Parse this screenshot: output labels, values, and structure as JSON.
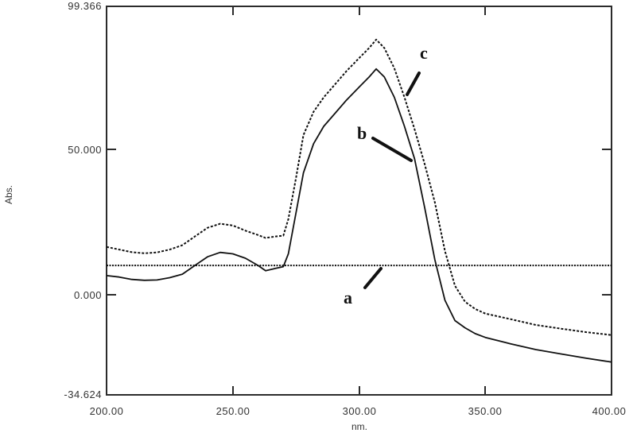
{
  "chart_data": {
    "type": "line",
    "title": "",
    "xlabel": "nm.",
    "ylabel": "Abs.",
    "xlim": [
      200.0,
      400.0
    ],
    "ylim": [
      -34.624,
      99.366
    ],
    "x_ticks": [
      "200.00",
      "250.00",
      "300.00",
      "350.00",
      "400.00"
    ],
    "y_ticks": [
      "99.366",
      "50.000",
      "0.000",
      "-34.624"
    ],
    "grid": false,
    "legend": "none (curves annotated with labels a, b, c)",
    "series": [
      {
        "name": "a",
        "style": "dotted",
        "x": [
          200,
          400
        ],
        "values": [
          10.0,
          10.0
        ]
      },
      {
        "name": "b",
        "style": "solid",
        "x": [
          200,
          205,
          210,
          215,
          220,
          225,
          230,
          235,
          240,
          245,
          250,
          255,
          260,
          263,
          267,
          270,
          272,
          275,
          278,
          282,
          286,
          290,
          295,
          300,
          304,
          306.8,
          310,
          314,
          318,
          322,
          326,
          330,
          334,
          338,
          342,
          346,
          350,
          360,
          370,
          380,
          390,
          400
        ],
        "values": [
          6.5,
          6.0,
          5.2,
          4.9,
          5.0,
          5.8,
          7.0,
          10.0,
          13.0,
          14.5,
          14.0,
          12.5,
          10.0,
          8.2,
          9.0,
          9.6,
          14.0,
          28.0,
          42.0,
          52.0,
          58.0,
          62.0,
          67.0,
          71.5,
          75.0,
          77.8,
          75.0,
          68.0,
          58.0,
          46.8,
          30.0,
          12.0,
          -2.0,
          -9.0,
          -11.5,
          -13.5,
          -14.8,
          -17.0,
          -19.0,
          -20.5,
          -22.0,
          -23.3
        ]
      },
      {
        "name": "c",
        "style": "dotted",
        "x": [
          200,
          205,
          210,
          215,
          220,
          225,
          230,
          235,
          240,
          245,
          250,
          255,
          260,
          263,
          267,
          270,
          272,
          275,
          278,
          282,
          286,
          290,
          295,
          300,
          304,
          306.8,
          310,
          314,
          318,
          322,
          326,
          330,
          334,
          338,
          342,
          346,
          350,
          360,
          370,
          380,
          390,
          400
        ],
        "values": [
          16.4,
          15.5,
          14.6,
          14.2,
          14.5,
          15.5,
          17.0,
          20.0,
          23.0,
          24.4,
          23.8,
          22.0,
          20.5,
          19.5,
          20.0,
          20.3,
          26.0,
          40.0,
          55.0,
          63.0,
          68.0,
          72.0,
          77.0,
          81.5,
          85.0,
          87.9,
          85.0,
          78.0,
          68.0,
          57.0,
          45.0,
          31.8,
          15.0,
          3.0,
          -2.5,
          -5.0,
          -6.6,
          -8.5,
          -10.5,
          -11.8,
          -13.0,
          -14.0
        ]
      }
    ],
    "annotations": [
      {
        "label": "a",
        "x_nm": 285,
        "y_abs": 0
      },
      {
        "label": "b",
        "x_nm": 302,
        "y_abs": 55
      },
      {
        "label": "c",
        "x_nm": 325,
        "y_abs": 83
      }
    ]
  },
  "axes": {
    "x_title": "nm.",
    "y_title": "Abs.",
    "x_tick_labels": [
      "200.00",
      "250.00",
      "300.00",
      "350.00",
      "400.00"
    ],
    "y_tick_labels": {
      "top": "99.366",
      "mid": "50.000",
      "zero": "0.000",
      "bottom": "-34.624"
    }
  },
  "labels": {
    "a": "a",
    "b": "b",
    "c": "c"
  },
  "colors": {
    "line": "#111111",
    "axis": "#2b2b2b",
    "text": "#333333",
    "background": "#ffffff"
  }
}
